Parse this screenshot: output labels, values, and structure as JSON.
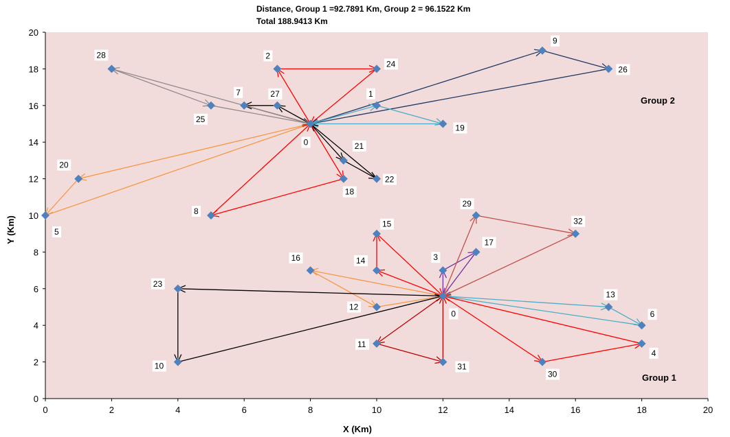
{
  "chart_data": {
    "type": "scatter",
    "title": "Distance,  Group 1 =92.7891 Km,  Group 2 = 96.1522 Km",
    "subtitle": "Total 188.9413 Km",
    "xlabel": "X  (Km)",
    "ylabel": "Y  (Km)",
    "xlim": [
      0,
      20
    ],
    "ylim": [
      0,
      20
    ],
    "x_ticks": [
      "0",
      "2",
      "4",
      "6",
      "8",
      "10",
      "12",
      "14",
      "16",
      "18",
      "20"
    ],
    "y_ticks": [
      "0",
      "2",
      "4",
      "6",
      "8",
      "10",
      "12",
      "14",
      "16",
      "18",
      "20"
    ],
    "plot_background": "#f1dcdb",
    "marker_color": "#4f81bd",
    "grid": false,
    "group_labels": [
      "Group  2",
      "Group  1"
    ],
    "depots": [
      {
        "name": "0",
        "x": 8,
        "y": 15
      },
      {
        "name": "0",
        "x": 12,
        "y": 5.6
      }
    ],
    "points": [
      {
        "name": "1",
        "x": 10,
        "y": 16
      },
      {
        "name": "2",
        "x": 7,
        "y": 18
      },
      {
        "name": "3",
        "x": 12,
        "y": 7
      },
      {
        "name": "4",
        "x": 18,
        "y": 3
      },
      {
        "name": "5",
        "x": 0,
        "y": 10
      },
      {
        "name": "6",
        "x": 18,
        "y": 4
      },
      {
        "name": "7",
        "x": 6,
        "y": 16
      },
      {
        "name": "8",
        "x": 5,
        "y": 10
      },
      {
        "name": "9",
        "x": 15,
        "y": 19
      },
      {
        "name": "10",
        "x": 4,
        "y": 2
      },
      {
        "name": "11",
        "x": 10,
        "y": 3
      },
      {
        "name": "12",
        "x": 10,
        "y": 5
      },
      {
        "name": "13",
        "x": 17,
        "y": 5
      },
      {
        "name": "14",
        "x": 10,
        "y": 7
      },
      {
        "name": "15",
        "x": 10,
        "y": 9
      },
      {
        "name": "16",
        "x": 8,
        "y": 7
      },
      {
        "name": "17",
        "x": 13,
        "y": 8
      },
      {
        "name": "18",
        "x": 9,
        "y": 12
      },
      {
        "name": "19",
        "x": 12,
        "y": 15
      },
      {
        "name": "20",
        "x": 1,
        "y": 12
      },
      {
        "name": "21",
        "x": 9,
        "y": 13
      },
      {
        "name": "22",
        "x": 10,
        "y": 12
      },
      {
        "name": "23",
        "x": 4,
        "y": 6
      },
      {
        "name": "24",
        "x": 10,
        "y": 18
      },
      {
        "name": "25",
        "x": 5,
        "y": 16
      },
      {
        "name": "26",
        "x": 17,
        "y": 18
      },
      {
        "name": "27",
        "x": 7,
        "y": 16
      },
      {
        "name": "28",
        "x": 2,
        "y": 18
      },
      {
        "name": "29",
        "x": 13,
        "y": 10
      },
      {
        "name": "30",
        "x": 15,
        "y": 2
      },
      {
        "name": "31",
        "x": 12,
        "y": 2
      },
      {
        "name": "32",
        "x": 16,
        "y": 9
      }
    ],
    "routes": [
      {
        "color": "#ff0000",
        "path": [
          [
            8,
            15
          ],
          [
            7,
            18
          ],
          [
            10,
            18
          ],
          [
            8,
            15
          ]
        ]
      },
      {
        "color": "#1f3864",
        "path": [
          [
            8,
            15
          ],
          [
            15,
            19
          ],
          [
            17,
            18
          ],
          [
            8,
            15
          ]
        ]
      },
      {
        "color": "#4bacc6",
        "path": [
          [
            8,
            15
          ],
          [
            10,
            16
          ],
          [
            12,
            15
          ],
          [
            8,
            15
          ]
        ]
      },
      {
        "color": "#000000",
        "path": [
          [
            8,
            15
          ],
          [
            7,
            16
          ],
          [
            6,
            16
          ],
          [
            8,
            15
          ]
        ]
      },
      {
        "color": "#948a8a",
        "path": [
          [
            8,
            15
          ],
          [
            2,
            18
          ],
          [
            5,
            16
          ],
          [
            8,
            15
          ]
        ]
      },
      {
        "color": "#f79646",
        "path": [
          [
            8,
            15
          ],
          [
            1,
            12
          ],
          [
            0,
            10
          ],
          [
            8,
            15
          ]
        ]
      },
      {
        "color": "#000000",
        "path": [
          [
            8,
            15
          ],
          [
            9,
            13
          ],
          [
            10,
            12
          ],
          [
            8,
            15
          ]
        ]
      },
      {
        "color": "#ff0000",
        "path": [
          [
            8,
            15
          ],
          [
            9,
            12
          ],
          [
            5,
            10
          ],
          [
            8,
            15
          ]
        ]
      },
      {
        "color": "#ff0000",
        "path": [
          [
            12,
            5.6
          ],
          [
            10,
            7
          ],
          [
            10,
            9
          ],
          [
            12,
            5.6
          ]
        ]
      },
      {
        "color": "#7030a0",
        "path": [
          [
            12,
            5.6
          ],
          [
            12,
            7
          ],
          [
            13,
            8
          ],
          [
            12,
            5.6
          ]
        ]
      },
      {
        "color": "#c0504d",
        "path": [
          [
            12,
            5.6
          ],
          [
            13,
            10
          ],
          [
            16,
            9
          ],
          [
            12,
            5.6
          ]
        ]
      },
      {
        "color": "#f79646",
        "path": [
          [
            12,
            5.6
          ],
          [
            8,
            7
          ],
          [
            10,
            5
          ],
          [
            12,
            5.6
          ]
        ]
      },
      {
        "color": "#000000",
        "path": [
          [
            12,
            5.6
          ],
          [
            4,
            6
          ],
          [
            4,
            2
          ],
          [
            12,
            5.6
          ]
        ]
      },
      {
        "color": "#c00000",
        "path": [
          [
            12,
            5.6
          ],
          [
            10,
            3
          ],
          [
            12,
            2
          ],
          [
            12,
            5.6
          ]
        ]
      },
      {
        "color": "#4bacc6",
        "path": [
          [
            12,
            5.6
          ],
          [
            17,
            5
          ],
          [
            18,
            4
          ],
          [
            12,
            5.6
          ]
        ]
      },
      {
        "color": "#ff0000",
        "path": [
          [
            12,
            5.6
          ],
          [
            15,
            2
          ],
          [
            18,
            3
          ],
          [
            12,
            5.6
          ]
        ]
      }
    ]
  }
}
